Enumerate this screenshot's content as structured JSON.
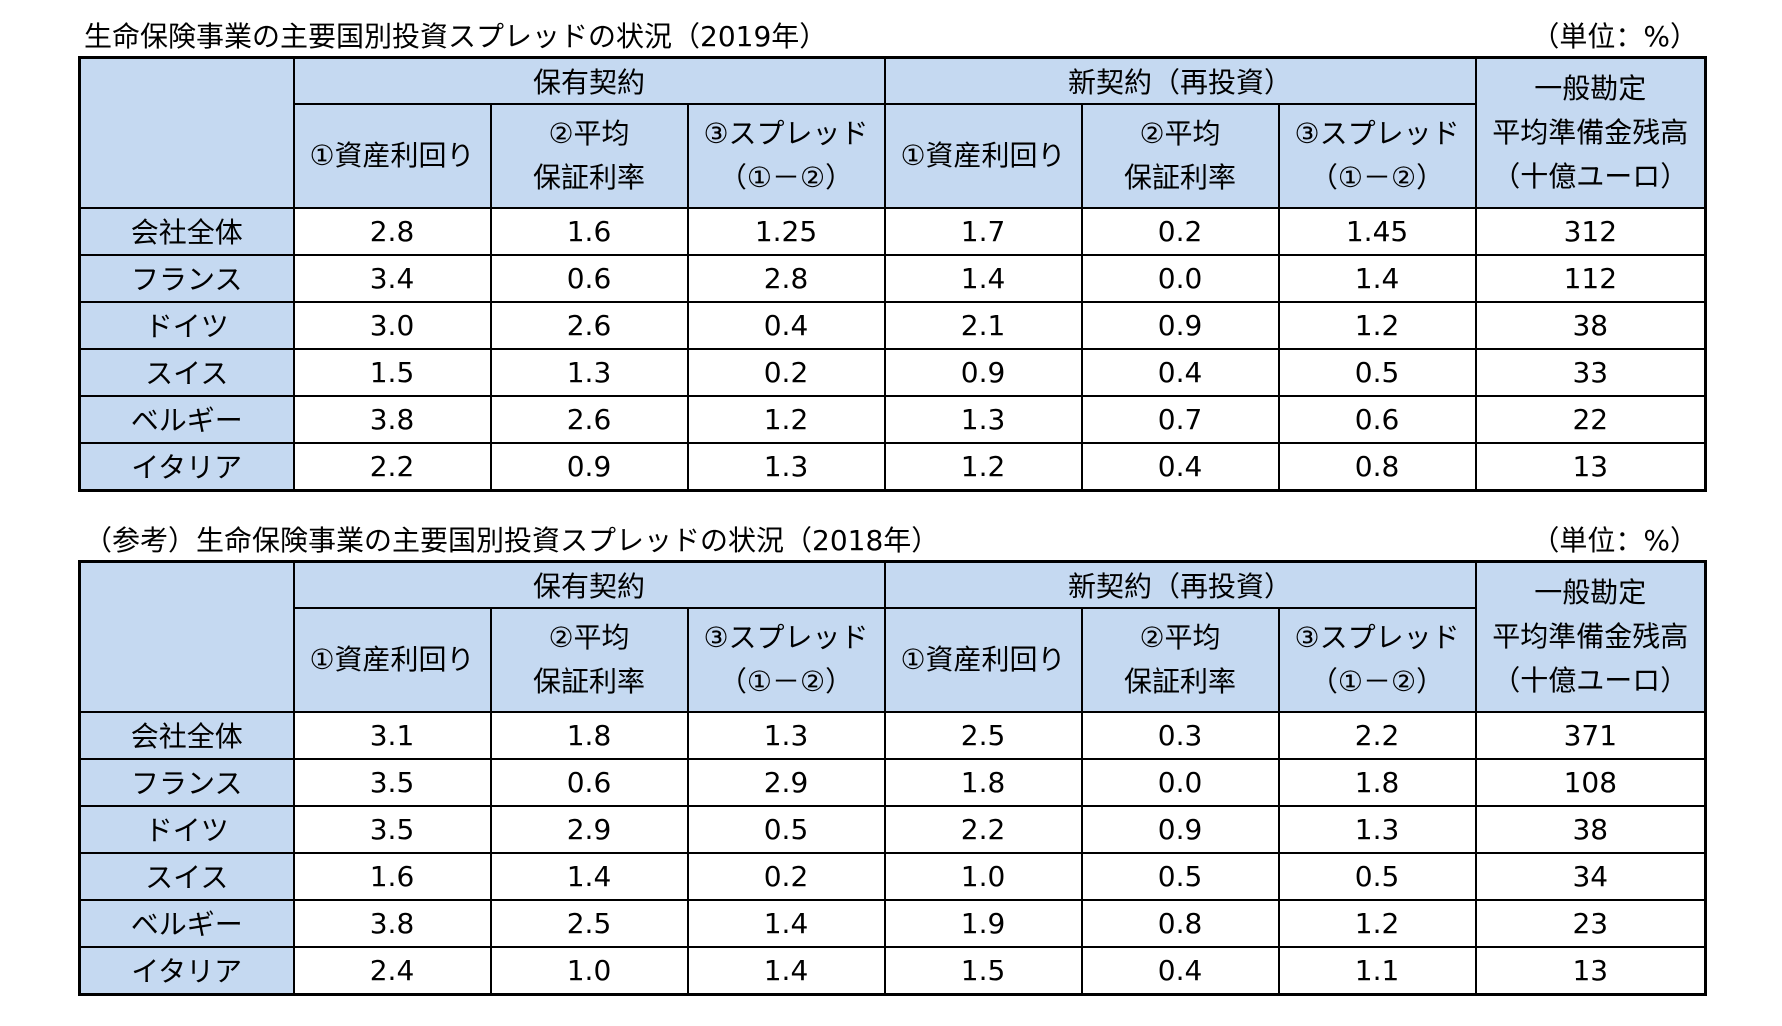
{
  "tables": [
    {
      "title": "生命保険事業の主要国別投資スプレッドの状況（2019年）",
      "unit": "（単位：%）",
      "group_existing": "保有契約",
      "group_new": "新契約（再投資）",
      "col_asset_yield": "①資産利回り",
      "col_avg_rate_l1": "②平均",
      "col_avg_rate_l2": "保証利率",
      "col_spread_l1": "③スプレッド",
      "col_spread_l2": "（①－②）",
      "col_reserve_l1": "一般勘定",
      "col_reserve_l2": "平均準備金残高",
      "col_reserve_l3": "（十億ユーロ）",
      "rows": [
        {
          "label": "会社全体",
          "values": [
            "2.8",
            "1.6",
            "1.25",
            "1.7",
            "0.2",
            "1.45",
            "312"
          ]
        },
        {
          "label": "フランス",
          "values": [
            "3.4",
            "0.6",
            "2.8",
            "1.4",
            "0.0",
            "1.4",
            "112"
          ]
        },
        {
          "label": "ドイツ",
          "values": [
            "3.0",
            "2.6",
            "0.4",
            "2.1",
            "0.9",
            "1.2",
            "38"
          ]
        },
        {
          "label": "スイス",
          "values": [
            "1.5",
            "1.3",
            "0.2",
            "0.9",
            "0.4",
            "0.5",
            "33"
          ]
        },
        {
          "label": "ベルギー",
          "values": [
            "3.8",
            "2.6",
            "1.2",
            "1.3",
            "0.7",
            "0.6",
            "22"
          ]
        },
        {
          "label": "イタリア",
          "values": [
            "2.2",
            "0.9",
            "1.3",
            "1.2",
            "0.4",
            "0.8",
            "13"
          ]
        }
      ]
    },
    {
      "title": "（参考）生命保険事業の主要国別投資スプレッドの状況（2018年）",
      "unit": "（単位：%）",
      "group_existing": "保有契約",
      "group_new": "新契約（再投資）",
      "col_asset_yield": "①資産利回り",
      "col_avg_rate_l1": "②平均",
      "col_avg_rate_l2": "保証利率",
      "col_spread_l1": "③スプレッド",
      "col_spread_l2": "（①－②）",
      "col_reserve_l1": "一般勘定",
      "col_reserve_l2": "平均準備金残高",
      "col_reserve_l3": "（十億ユーロ）",
      "rows": [
        {
          "label": "会社全体",
          "values": [
            "3.1",
            "1.8",
            "1.3",
            "2.5",
            "0.3",
            "2.2",
            "371"
          ]
        },
        {
          "label": "フランス",
          "values": [
            "3.5",
            "0.6",
            "2.9",
            "1.8",
            "0.0",
            "1.8",
            "108"
          ]
        },
        {
          "label": "ドイツ",
          "values": [
            "3.5",
            "2.9",
            "0.5",
            "2.2",
            "0.9",
            "1.3",
            "38"
          ]
        },
        {
          "label": "スイス",
          "values": [
            "1.6",
            "1.4",
            "0.2",
            "1.0",
            "0.5",
            "0.5",
            "34"
          ]
        },
        {
          "label": "ベルギー",
          "values": [
            "3.8",
            "2.5",
            "1.4",
            "1.9",
            "0.8",
            "1.2",
            "23"
          ]
        },
        {
          "label": "イタリア",
          "values": [
            "2.4",
            "1.0",
            "1.4",
            "1.5",
            "0.4",
            "1.1",
            "13"
          ]
        }
      ]
    }
  ]
}
